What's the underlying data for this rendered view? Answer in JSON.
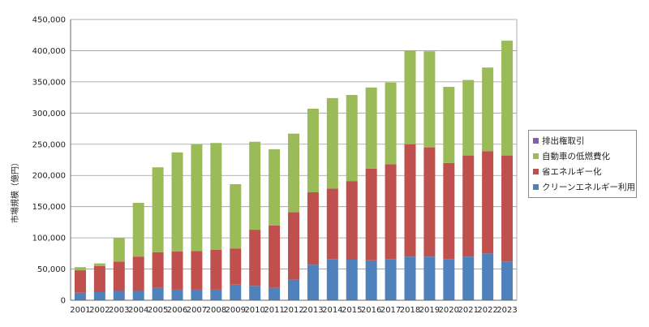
{
  "chart_data": {
    "type": "bar",
    "stacked": true,
    "categories": [
      "2001",
      "2002",
      "2003",
      "2004",
      "2005",
      "2006",
      "2007",
      "2008",
      "2009",
      "2010",
      "2011",
      "2012",
      "2013",
      "2014",
      "2015",
      "2016",
      "2017",
      "2018",
      "2019",
      "2020",
      "2021",
      "2022",
      "2023"
    ],
    "ylabel": "市場規模（億円）",
    "xlabel": "",
    "ylim": [
      0,
      450000
    ],
    "yticks": [
      "0",
      "50,000",
      "100,000",
      "150,000",
      "200,000",
      "250,000",
      "300,000",
      "350,000",
      "400,000",
      "450,000"
    ],
    "grid": true,
    "legend_position": "right",
    "series": [
      {
        "name": "クリーンエネルギー利用",
        "color": "#4f81bd",
        "values": [
          12000,
          13000,
          15000,
          15000,
          20000,
          17000,
          17000,
          17000,
          25000,
          23000,
          20000,
          33000,
          57000,
          66000,
          65000,
          64000,
          66000,
          70000,
          70000,
          66000,
          70000,
          75000,
          62000
        ]
      },
      {
        "name": "省エネルギー化",
        "color": "#c0504d",
        "values": [
          36000,
          42000,
          47000,
          55000,
          57000,
          61000,
          62000,
          64000,
          58000,
          90000,
          100000,
          108000,
          116000,
          113000,
          126000,
          147000,
          152000,
          180000,
          175000,
          154000,
          162000,
          164000,
          170000
        ]
      },
      {
        "name": "自動車の低燃費化",
        "color": "#9bbb59",
        "values": [
          5000,
          4000,
          38000,
          86000,
          136000,
          159000,
          171000,
          171000,
          103000,
          141000,
          122000,
          126000,
          134000,
          145000,
          138000,
          130000,
          131000,
          150000,
          154000,
          122000,
          121000,
          134000,
          184000
        ]
      },
      {
        "name": "排出権取引",
        "color": "#8064a2",
        "values": [
          0,
          0,
          0,
          0,
          0,
          0,
          0,
          0,
          0,
          0,
          0,
          0,
          0,
          0,
          0,
          0,
          0,
          0,
          0,
          0,
          0,
          0,
          0
        ]
      }
    ]
  }
}
